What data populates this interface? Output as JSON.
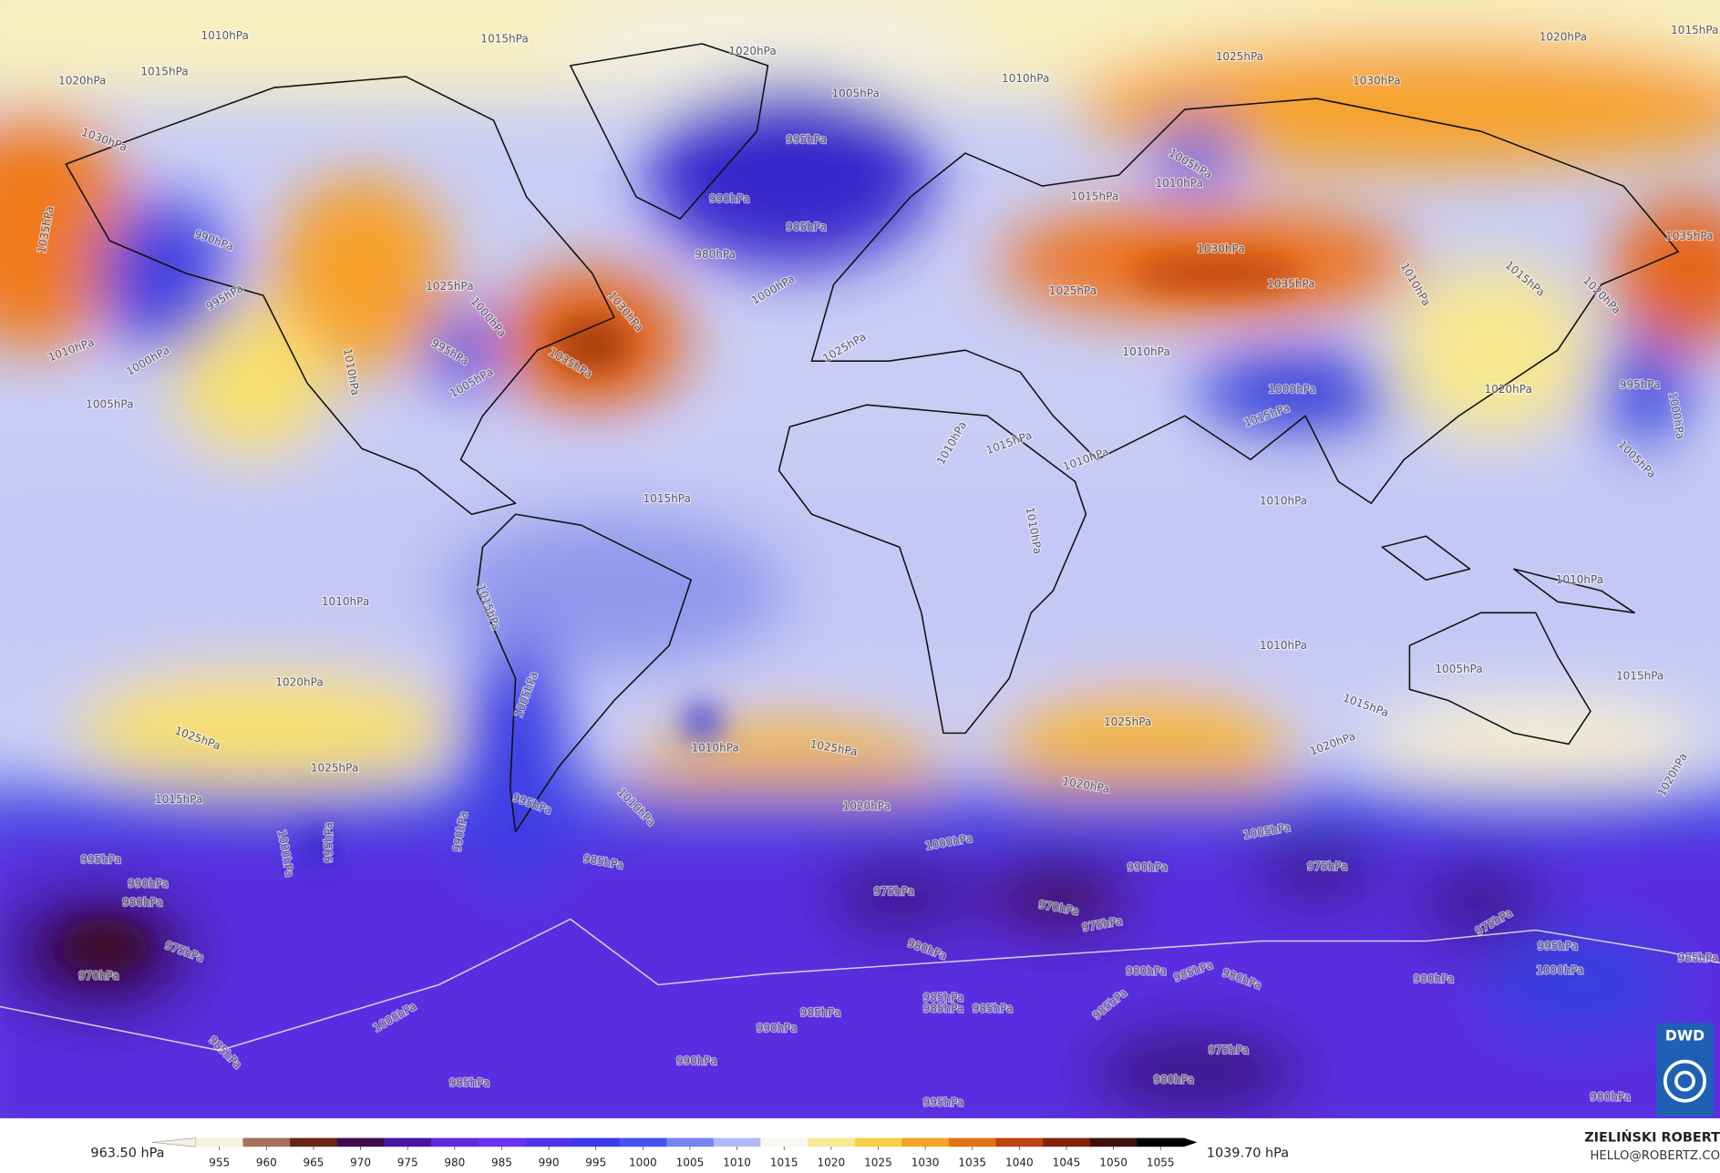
{
  "map": {
    "contour_labels": [
      "1010hPa",
      "1015hPa",
      "1020hPa",
      "1030hPa",
      "1035hPa",
      "990hPa",
      "995hPa",
      "1010hPa",
      "1000hPa",
      "1005hPa",
      "1025hPa",
      "1010hPa",
      "995hPa",
      "1000hPa",
      "1005hPa",
      "1030hPa",
      "1035hPa",
      "1015hPa",
      "1020hPa",
      "1005hPa",
      "995hPa",
      "990hPa",
      "985hPa",
      "980hPa",
      "1000hPa",
      "1010hPa",
      "1025hPa",
      "1020hPa",
      "1030hPa",
      "1015hPa",
      "1035hPa",
      "1005hPa",
      "1010hPa",
      "1015hPa",
      "1030hPa",
      "1035hPa",
      "1025hPa",
      "1010hPa",
      "1015hPa",
      "1020hPa",
      "1000hPa",
      "1015hPa",
      "1020hPa",
      "995hPa",
      "1000hPa",
      "1005hPa",
      "1025hPa",
      "1010hPa",
      "1010hPa",
      "1015hPa",
      "1010hPa",
      "1015hPa",
      "1010hPa",
      "1010hPa",
      "1010hPa",
      "1015hPa",
      "1010hPa",
      "1010hPa",
      "1005hPa",
      "1015hPa",
      "1015hPa",
      "1020hPa",
      "1020hPa",
      "1025hPa",
      "1025hPa",
      "1015hPa",
      "1010hPa",
      "1025hPa",
      "1020hPa",
      "1025hPa",
      "1020hPa",
      "1005hPa",
      "995hPa",
      "990hPa",
      "1010hPa",
      "1005hPa",
      "1000hPa",
      "995hPa",
      "990hPa",
      "980hPa",
      "975hPa",
      "970hPa",
      "1000hPa",
      "995hPa",
      "985hPa",
      "990hPa",
      "975hPa",
      "975hPa",
      "970hPa",
      "975hPa",
      "975hPa",
      "980hPa",
      "1000hPa",
      "985hPa",
      "990hPa",
      "985hPa",
      "985hPa",
      "985hPa",
      "985hPa",
      "985hPa",
      "980hPa",
      "985hPa",
      "980hPa",
      "995hPa",
      "1000hPa",
      "985hPa",
      "980hPa",
      "990hPa",
      "985hPa",
      "975hPa",
      "980hPa",
      "995hPa",
      "980hPa",
      "1020hPa"
    ]
  },
  "colorbar": {
    "min_label": "963.50 hPa",
    "max_label": "1039.70 hPa",
    "ticks": [
      955,
      960,
      965,
      970,
      975,
      980,
      985,
      990,
      995,
      1000,
      1005,
      1010,
      1015,
      1020,
      1025,
      1030,
      1035,
      1040,
      1045,
      1050,
      1055
    ],
    "colors": [
      "#f6efe2",
      "#a87058",
      "#6a2412",
      "#3e0c4e",
      "#4a14a0",
      "#6428dc",
      "#6c30f0",
      "#5232ea",
      "#3a3ae6",
      "#4454ee",
      "#7482f2",
      "#b2baf8",
      "#f8f8f2",
      "#f8ea94",
      "#f8d044",
      "#f2a424",
      "#e27212",
      "#c04212",
      "#802208",
      "#401008",
      "#000000"
    ]
  },
  "credit": {
    "name": "ZIELIŃSKI ROBERT",
    "email": "HELLO@ROBERTZ.CO"
  },
  "logo": "DWD"
}
